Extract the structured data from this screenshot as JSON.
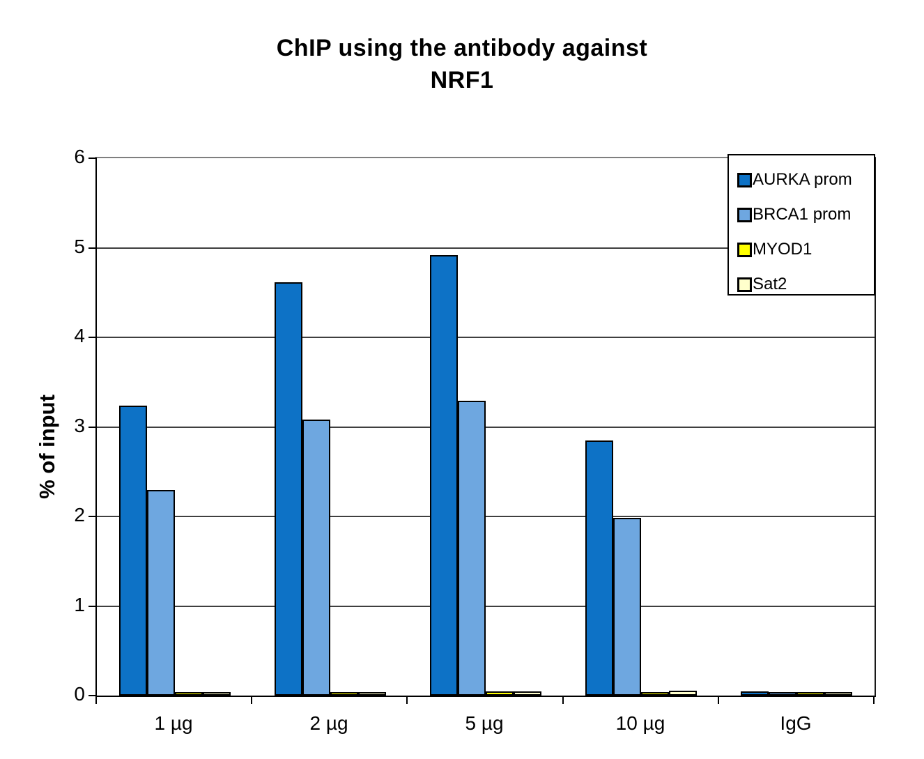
{
  "chart_data": {
    "type": "bar",
    "title": "ChIP using the antibody against NRF1",
    "title_lines": [
      "ChIP using the antibody against",
      "NRF1"
    ],
    "ylabel": "% of input",
    "xlabel": "",
    "ylim": [
      0,
      6
    ],
    "yticks": [
      0,
      1,
      2,
      3,
      4,
      5,
      6
    ],
    "grid": "horizontal",
    "legend_position": "top-right",
    "plot_background": "#ffffff",
    "categories": [
      "1 µg",
      "2 µg",
      "5 µg",
      "10 µg",
      "IgG"
    ],
    "series": [
      {
        "name": "AURKA prom",
        "color": "#0d72c6",
        "values": [
          3.22,
          4.6,
          4.9,
          2.83,
          0.03
        ]
      },
      {
        "name": "BRCA1 prom",
        "color": "#6ea7e0",
        "values": [
          2.28,
          3.07,
          3.28,
          1.97,
          0.02
        ]
      },
      {
        "name": "MYOD1",
        "color": "#ffff00",
        "values": [
          0.02,
          0.02,
          0.03,
          0.02,
          0.02
        ]
      },
      {
        "name": "Sat2",
        "color": "#ffffcc",
        "values": [
          0.02,
          0.02,
          0.03,
          0.04,
          0.02
        ]
      }
    ]
  },
  "colors": {
    "axis": "#000000",
    "gridline": "#3f3f3f",
    "bar_outline": "#000000",
    "text": "#000000"
  }
}
